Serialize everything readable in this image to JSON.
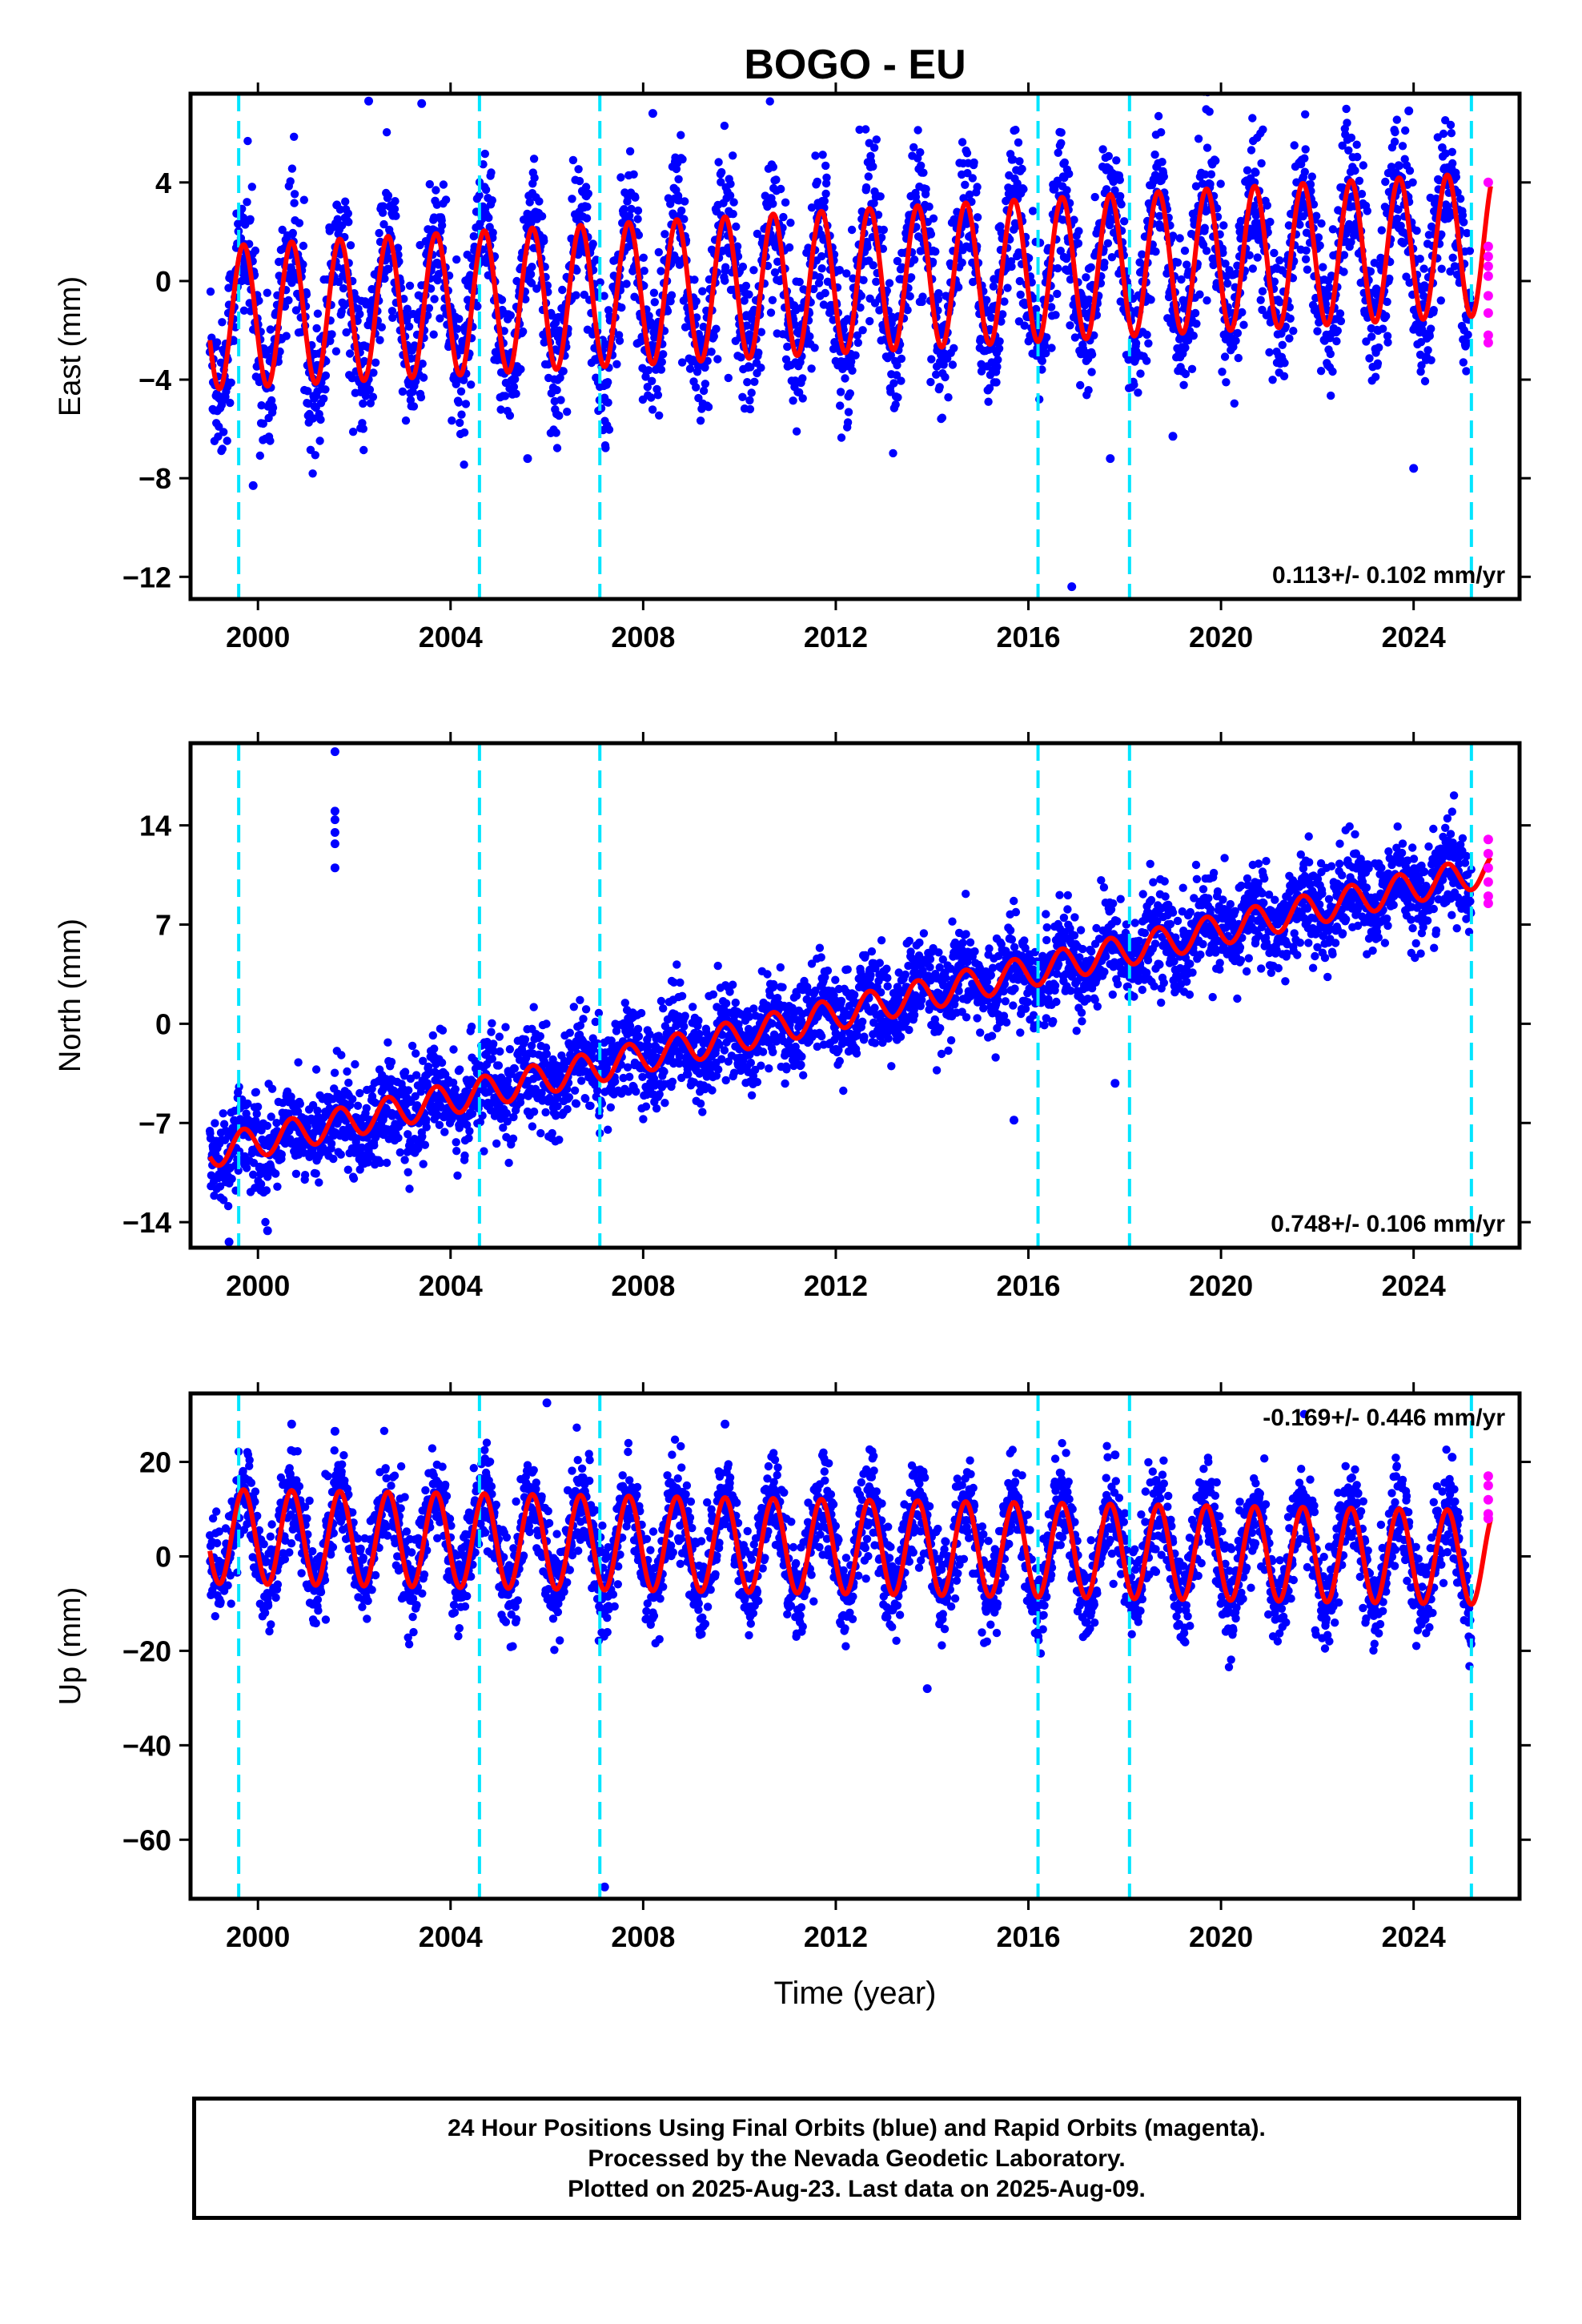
{
  "title": "BOGO - EU",
  "xlabel": "Time (year)",
  "caption": {
    "line1": "24 Hour Positions Using Final Orbits (blue) and Rapid Orbits (magenta).",
    "line2": "Processed by the Nevada Geodetic Laboratory.",
    "line3": "Plotted on 2025-Aug-23. Last data on 2025-Aug-09."
  },
  "colors": {
    "final_orbits": "#0000ff",
    "rapid_orbits": "#ff00ff",
    "model": "#ff0000",
    "events": "#00e5ff",
    "axes": "#000000"
  },
  "chart_data": [
    {
      "type": "scatter",
      "ylabel": "East (mm)",
      "xlim": [
        1998.6,
        2026.2
      ],
      "ylim": [
        -12.9,
        7.6
      ],
      "xticks": [
        2000,
        2004,
        2008,
        2012,
        2016,
        2020,
        2024
      ],
      "yticks": [
        4,
        0,
        -4,
        -8,
        -12
      ],
      "rate_label": "0.113+/- 0.102 mm/yr",
      "rate_position": "bottom-right",
      "event_lines": [
        1999.6,
        2004.6,
        2007.1,
        2016.2,
        2018.1,
        2025.2
      ],
      "model": {
        "trend_mm_per_yr": 0.113,
        "offset": 0.0,
        "amplitude": 2.9,
        "x_start": 1999.0,
        "x_end": 2025.6
      },
      "scatter": {
        "spread": 1.6,
        "x_start": 1999.0,
        "x_end": 2025.2
      },
      "rapid_orbits": {
        "x": 2025.55,
        "y": [
          4.0,
          1.4,
          1.0,
          0.6,
          0.2,
          -0.6,
          -1.3,
          -2.2,
          -2.5
        ]
      },
      "outliers": [
        [
          2002.3,
          7.3
        ],
        [
          2003.4,
          7.2
        ],
        [
          1999.9,
          -8.3
        ],
        [
          2005.6,
          -7.2
        ],
        [
          2016.9,
          -12.4
        ],
        [
          2017.7,
          -7.2
        ],
        [
          2019.0,
          -6.3
        ],
        [
          2024.0,
          -7.6
        ],
        [
          2008.2,
          6.8
        ],
        [
          2023.9,
          6.9
        ]
      ]
    },
    {
      "type": "scatter",
      "ylabel": "North (mm)",
      "xlim": [
        1998.6,
        2026.2
      ],
      "ylim": [
        -15.8,
        19.8
      ],
      "xticks": [
        2000,
        2004,
        2008,
        2012,
        2016,
        2020,
        2024
      ],
      "yticks": [
        14,
        7,
        0,
        -7,
        -14
      ],
      "rate_label": "0.748+/- 0.106 mm/yr",
      "rate_position": "bottom-right",
      "event_lines": [
        1999.6,
        2004.6,
        2007.1,
        2016.2,
        2018.1,
        2025.2
      ],
      "model": {
        "trend_mm_per_yr": 0.748,
        "offset": 0.9,
        "amplitude": 1.1,
        "x_start": 1999.0,
        "x_end": 2025.6
      },
      "scatter": {
        "spread": 1.8,
        "x_start": 1999.0,
        "x_end": 2025.2
      },
      "rapid_orbits": {
        "x": 2025.55,
        "y": [
          13.0,
          12.0,
          11.0,
          10.0,
          9.0,
          8.5
        ]
      },
      "outliers": [
        [
          2001.6,
          19.2
        ],
        [
          2001.6,
          15.0
        ],
        [
          2001.6,
          14.4
        ],
        [
          2001.6,
          13.5
        ],
        [
          2001.6,
          12.7
        ],
        [
          2001.6,
          11.0
        ],
        [
          2022.8,
          12.0
        ],
        [
          2017.8,
          -4.2
        ],
        [
          2015.7,
          -6.8
        ],
        [
          2000.2,
          -14.6
        ],
        [
          1999.4,
          -15.4
        ]
      ]
    },
    {
      "type": "scatter",
      "ylabel": "Up (mm)",
      "xlim": [
        1998.6,
        2026.2
      ],
      "ylim": [
        -72.5,
        34.5
      ],
      "xticks": [
        2000,
        2004,
        2008,
        2012,
        2016,
        2020,
        2024
      ],
      "yticks": [
        20,
        0,
        -20,
        -40,
        -60
      ],
      "rate_label": "-0.169+/- 0.446 mm/yr",
      "rate_position": "top-right",
      "event_lines": [
        1999.6,
        2004.6,
        2007.1,
        2016.2,
        2018.1,
        2025.2
      ],
      "model": {
        "trend_mm_per_yr": -0.169,
        "offset": 2.0,
        "amplitude": 10.0,
        "x_start": 1999.0,
        "x_end": 2025.6
      },
      "scatter": {
        "spread": 5.5,
        "x_start": 1999.0,
        "x_end": 2025.2
      },
      "rapid_orbits": {
        "x": 2025.55,
        "y": [
          17.0,
          15.0,
          12.0,
          9.0,
          8.0
        ]
      },
      "outliers": [
        [
          2007.2,
          -70.0
        ],
        [
          2006.0,
          32.5
        ],
        [
          2009.7,
          28.0
        ],
        [
          2017.8,
          21.5
        ],
        [
          2013.9,
          -28.0
        ],
        [
          2000.7,
          28.0
        ],
        [
          2001.6,
          26.5
        ],
        [
          2024.8,
          21.0
        ]
      ]
    }
  ]
}
